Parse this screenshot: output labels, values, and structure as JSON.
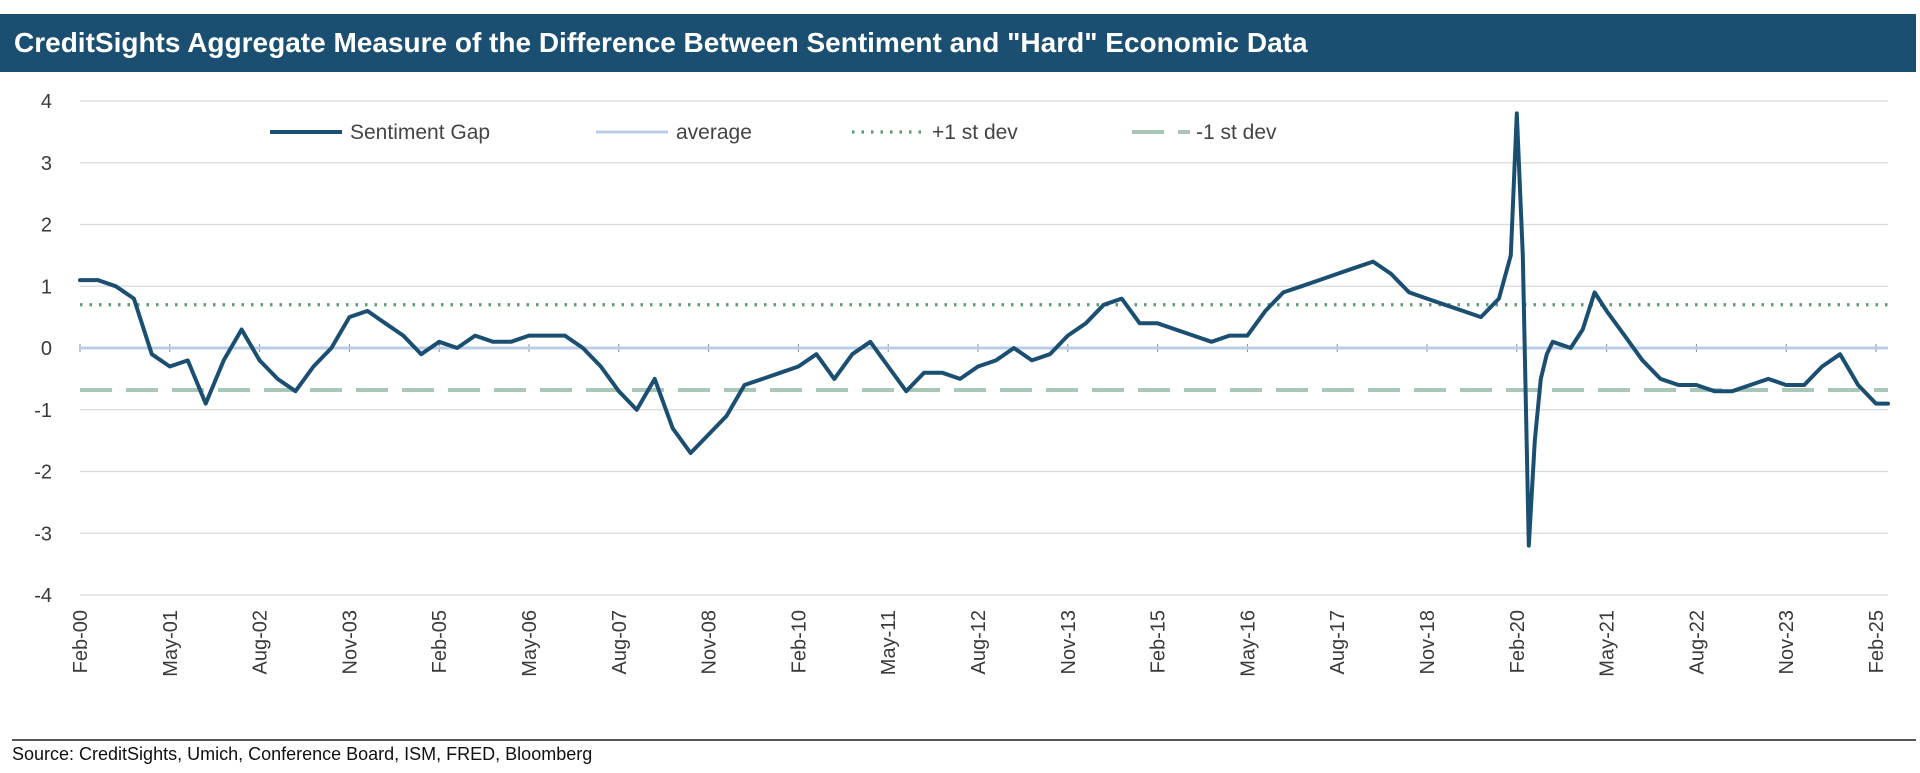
{
  "title": "CreditSights Aggregate Measure of the Difference Between Sentiment and \"Hard\" Economic Data",
  "source": "Source: CreditSights, Umich, Conference Board, ISM, FRED, Bloomberg",
  "colors": {
    "title_bg": "#1b4f72",
    "sentiment_gap": "#1b4f72",
    "average": "#b9cde6",
    "plus_1_sd": "#5e9c74",
    "minus_1_sd": "#a9c7b6",
    "grid": "#d9d9d9"
  },
  "chart_data": {
    "type": "line",
    "title": "CreditSights Aggregate Measure of the Difference Between Sentiment and \"Hard\" Economic Data",
    "xlabel": "",
    "ylabel": "",
    "ylim": [
      -4,
      4
    ],
    "y_ticks": [
      4,
      3,
      2,
      1,
      0,
      -1,
      -2,
      -3,
      -4
    ],
    "x_tick_labels": [
      "Feb-00",
      "May-01",
      "Aug-02",
      "Nov-03",
      "Feb-05",
      "May-06",
      "Aug-07",
      "Nov-08",
      "Feb-10",
      "May-11",
      "Aug-12",
      "Nov-13",
      "Feb-15",
      "May-16",
      "Aug-17",
      "Nov-18",
      "Feb-20",
      "May-21",
      "Aug-22",
      "Nov-23",
      "Feb-25"
    ],
    "x_range": [
      "2000-02",
      "2025-04"
    ],
    "grid": "horizontal",
    "legend_position": "top",
    "legend": [
      "Sentiment Gap",
      "average",
      "+1 st dev",
      "-1 st dev"
    ],
    "series": [
      {
        "name": "Sentiment Gap",
        "style": "solid",
        "x": [
          "2000-02",
          "2000-05",
          "2000-08",
          "2000-11",
          "2001-02",
          "2001-05",
          "2001-08",
          "2001-11",
          "2002-02",
          "2002-05",
          "2002-08",
          "2002-11",
          "2003-02",
          "2003-05",
          "2003-08",
          "2003-11",
          "2004-02",
          "2004-05",
          "2004-08",
          "2004-11",
          "2005-02",
          "2005-05",
          "2005-08",
          "2005-11",
          "2006-02",
          "2006-05",
          "2006-08",
          "2006-11",
          "2007-02",
          "2007-05",
          "2007-08",
          "2007-11",
          "2008-02",
          "2008-05",
          "2008-08",
          "2008-11",
          "2009-02",
          "2009-05",
          "2009-08",
          "2009-11",
          "2010-02",
          "2010-05",
          "2010-08",
          "2010-11",
          "2011-02",
          "2011-05",
          "2011-08",
          "2011-11",
          "2012-02",
          "2012-05",
          "2012-08",
          "2012-11",
          "2013-02",
          "2013-05",
          "2013-08",
          "2013-11",
          "2014-02",
          "2014-05",
          "2014-08",
          "2014-11",
          "2015-02",
          "2015-05",
          "2015-08",
          "2015-11",
          "2016-02",
          "2016-05",
          "2016-08",
          "2016-11",
          "2017-02",
          "2017-05",
          "2017-08",
          "2017-11",
          "2018-02",
          "2018-05",
          "2018-08",
          "2018-11",
          "2019-02",
          "2019-05",
          "2019-08",
          "2019-11",
          "2020-01",
          "2020-02",
          "2020-03",
          "2020-04",
          "2020-05",
          "2020-06",
          "2020-07",
          "2020-08",
          "2020-11",
          "2021-01",
          "2021-03",
          "2021-05",
          "2021-08",
          "2021-11",
          "2022-02",
          "2022-05",
          "2022-08",
          "2022-11",
          "2023-02",
          "2023-05",
          "2023-08",
          "2023-11",
          "2024-02",
          "2024-05",
          "2024-08",
          "2024-11",
          "2025-02",
          "2025-04"
        ],
        "values": [
          1.1,
          1.1,
          1.0,
          0.8,
          -0.1,
          -0.3,
          -0.2,
          -0.9,
          -0.2,
          0.3,
          -0.2,
          -0.5,
          -0.7,
          -0.3,
          0.0,
          0.5,
          0.6,
          0.4,
          0.2,
          -0.1,
          0.1,
          0.0,
          0.2,
          0.1,
          0.1,
          0.2,
          0.2,
          0.2,
          0.0,
          -0.3,
          -0.7,
          -1.0,
          -0.5,
          -1.3,
          -1.7,
          -1.4,
          -1.1,
          -0.6,
          -0.5,
          -0.4,
          -0.3,
          -0.1,
          -0.5,
          -0.1,
          0.1,
          -0.3,
          -0.7,
          -0.4,
          -0.4,
          -0.5,
          -0.3,
          -0.2,
          0.0,
          -0.2,
          -0.1,
          0.2,
          0.4,
          0.7,
          0.8,
          0.4,
          0.4,
          0.3,
          0.2,
          0.1,
          0.2,
          0.2,
          0.6,
          0.9,
          1.0,
          1.1,
          1.2,
          1.3,
          1.4,
          1.2,
          0.9,
          0.8,
          0.7,
          0.6,
          0.5,
          0.8,
          1.5,
          3.8,
          1.5,
          -3.2,
          -1.5,
          -0.5,
          -0.1,
          0.1,
          0.0,
          0.3,
          0.9,
          0.6,
          0.2,
          -0.2,
          -0.5,
          -0.6,
          -0.6,
          -0.7,
          -0.7,
          -0.6,
          -0.5,
          -0.6,
          -0.6,
          -0.3,
          -0.1,
          -0.6,
          -0.9,
          -0.9
        ]
      },
      {
        "name": "average",
        "style": "solid",
        "constant": 0.0
      },
      {
        "name": "+1 st dev",
        "style": "dotted",
        "constant": 0.7
      },
      {
        "name": "-1 st dev",
        "style": "dashed",
        "constant": -0.68
      }
    ]
  }
}
